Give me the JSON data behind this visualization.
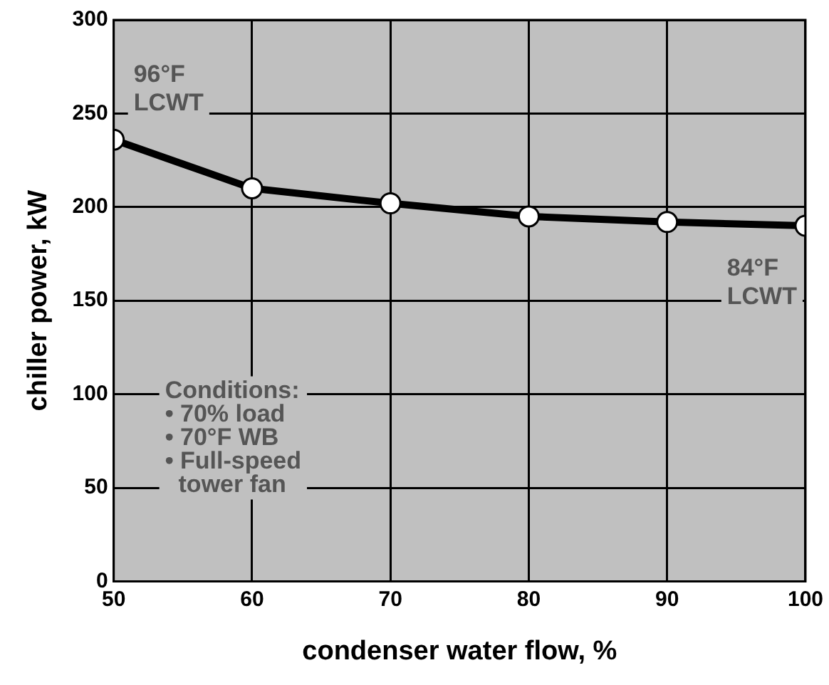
{
  "chart_data": {
    "type": "line",
    "xlabel": "condenser water flow, %",
    "ylabel": "chiller power, kW",
    "x": [
      50,
      60,
      70,
      80,
      90,
      100
    ],
    "series": [
      {
        "color": "#000000",
        "values": [
          236,
          210,
          202,
          195,
          192,
          190
        ]
      }
    ],
    "xlim": [
      50,
      100
    ],
    "xticks": [
      50,
      60,
      70,
      80,
      90,
      100
    ],
    "ylim": [
      0,
      300
    ],
    "yticks": [
      0,
      50,
      100,
      150,
      200,
      250,
      300
    ],
    "grid": true,
    "legend": false,
    "marker": "circle",
    "line_style": "solid",
    "annotations": [
      {
        "text": "96°F\nLCWT",
        "x": 50,
        "y": 236
      },
      {
        "text": "84°F\nLCWT",
        "x": 100,
        "y": 190
      },
      "Conditions:\n• 70% load\n• 70°F WB\n• Full-speed\n  tower fan"
    ]
  }
}
